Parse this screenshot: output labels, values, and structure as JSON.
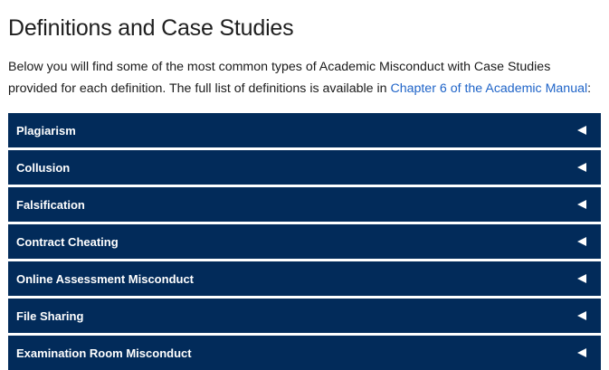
{
  "page": {
    "title": "Definitions and Case Studies",
    "intro_text": "Below you will find some of the most common types of Academic Misconduct with Case Studies provided for each definition. The full list of definitions is available in ",
    "intro_link": "Chapter 6 of the Academic Manual",
    "intro_suffix": ":"
  },
  "accordion": {
    "items": [
      {
        "label": "Plagiarism",
        "icon": "triangle-left-icon"
      },
      {
        "label": "Collusion",
        "icon": "triangle-left-icon"
      },
      {
        "label": "Falsification",
        "icon": "triangle-left-icon"
      },
      {
        "label": "Contract Cheating",
        "icon": "triangle-left-icon"
      },
      {
        "label": "Online Assessment Misconduct",
        "icon": "triangle-left-icon"
      },
      {
        "label": "File Sharing",
        "icon": "triangle-left-icon"
      },
      {
        "label": "Examination Room Misconduct",
        "icon": "triangle-left-icon"
      }
    ]
  },
  "colors": {
    "accordion_bg": "#022b5a",
    "link": "#1f64c8",
    "text": "#1a1a1a"
  }
}
